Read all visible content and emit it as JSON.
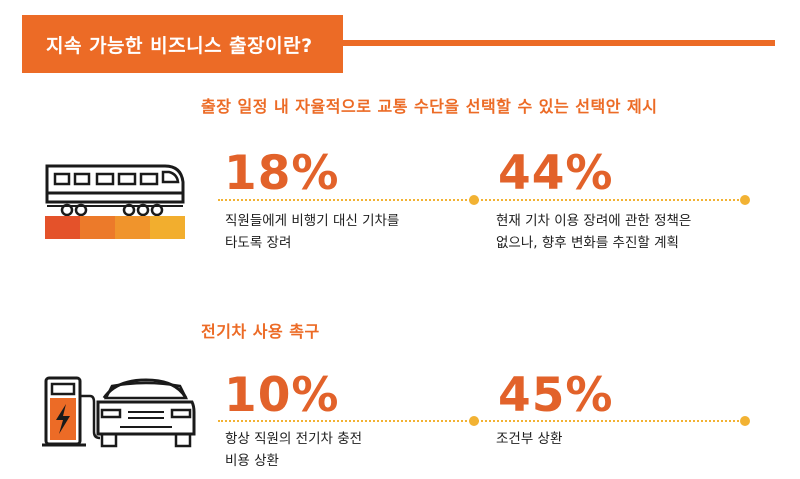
{
  "header": {
    "title": "지속 가능한 비즈니스 출장이란?"
  },
  "sections": [
    {
      "title": "출장 일정 내 자율적으로 교통 수단을 선택할 수 있는 선택안 제시",
      "icon": "train-icon",
      "stats": [
        {
          "value": "18%",
          "desc_lines": [
            "직원들에게 비행기 대신 기차를",
            "타도록 장려"
          ]
        },
        {
          "value": "44%",
          "desc_lines": [
            "현재 기차 이용 장려에 관한 정책은",
            "없으나, 향후 변화를 추진할 계획"
          ]
        }
      ]
    },
    {
      "title": "전기차 사용 촉구",
      "icon": "ev-charging-car-icon",
      "stats": [
        {
          "value": "10%",
          "desc_lines": [
            "항상 직원의 전기차 충전",
            "비용 상환"
          ]
        },
        {
          "value": "45%",
          "desc_lines": [
            "조건부 상환"
          ]
        }
      ]
    }
  ],
  "colors": {
    "accent": "#ec6b26",
    "stat": "#e2622a",
    "dots": "#f2b233",
    "icon": "#1a1a1a"
  }
}
